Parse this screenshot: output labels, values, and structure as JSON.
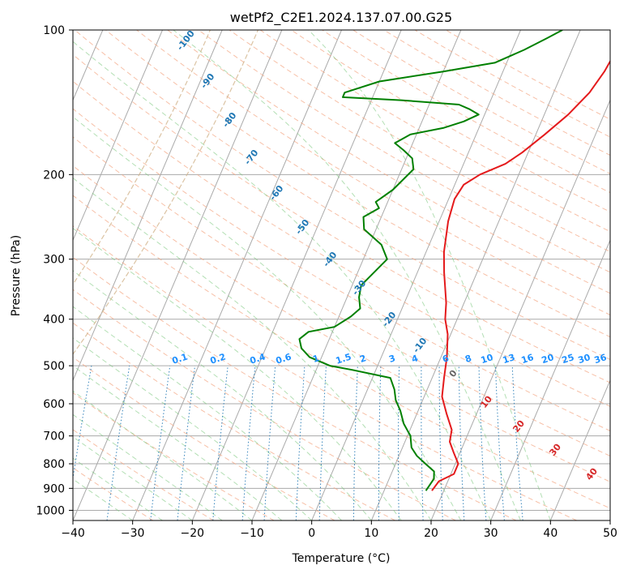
{
  "chart_data": {
    "type": "line",
    "title": "wetPf2_C2E1.2024.137.07.00.G25",
    "xlabel": "Temperature (°C)",
    "ylabel": "Pressure (hPa)",
    "xlim": [
      -40,
      50
    ],
    "ylim": [
      1050,
      100
    ],
    "y_scale": "log",
    "grid": true,
    "x_ticks": [
      -40,
      -30,
      -20,
      -10,
      0,
      10,
      20,
      30,
      40,
      50
    ],
    "y_ticks": [
      100,
      200,
      300,
      400,
      500,
      600,
      700,
      800,
      900,
      1000
    ],
    "series": [
      {
        "name": "",
        "color": "#e41a1c",
        "points": [
          [
            18.0,
            910
          ],
          [
            18.5,
            870
          ],
          [
            20.5,
            840
          ],
          [
            20.5,
            800
          ],
          [
            19.0,
            760
          ],
          [
            17.5,
            720
          ],
          [
            17.0,
            680
          ],
          [
            15.0,
            630
          ],
          [
            13.0,
            580
          ],
          [
            12.0,
            530
          ],
          [
            11.0,
            480
          ],
          [
            9.5,
            430
          ],
          [
            8.0,
            400
          ],
          [
            7.0,
            370
          ],
          [
            4.5,
            320
          ],
          [
            3.0,
            290
          ],
          [
            1.5,
            250
          ],
          [
            1.0,
            225
          ],
          [
            1.5,
            210
          ],
          [
            3.5,
            200
          ],
          [
            7.0,
            190
          ],
          [
            9.0,
            180
          ],
          [
            11.5,
            165
          ],
          [
            14.0,
            150
          ],
          [
            16.0,
            135
          ],
          [
            17.0,
            122
          ],
          [
            17.5,
            110
          ],
          [
            17.0,
            100
          ]
        ]
      },
      {
        "name": "",
        "color": "#008000",
        "points": [
          [
            17.0,
            910
          ],
          [
            17.5,
            860
          ],
          [
            17.0,
            830
          ],
          [
            15.0,
            800
          ],
          [
            13.0,
            770
          ],
          [
            11.5,
            740
          ],
          [
            10.5,
            700
          ],
          [
            8.5,
            660
          ],
          [
            7.0,
            620
          ],
          [
            5.5,
            590
          ],
          [
            4.5,
            560
          ],
          [
            3.0,
            530
          ],
          [
            -4.0,
            510
          ],
          [
            -8.0,
            500
          ],
          [
            -12.0,
            480
          ],
          [
            -14.0,
            460
          ],
          [
            -15.0,
            440
          ],
          [
            -14.0,
            425
          ],
          [
            -10.0,
            415
          ],
          [
            -8.0,
            395
          ],
          [
            -7.0,
            380
          ],
          [
            -8.0,
            360
          ],
          [
            -8.5,
            340
          ],
          [
            -6.0,
            300
          ],
          [
            -8.0,
            280
          ],
          [
            -12.0,
            260
          ],
          [
            -13.0,
            245
          ],
          [
            -11.0,
            235
          ],
          [
            -12.0,
            228
          ],
          [
            -10.0,
            215
          ],
          [
            -8.0,
            195
          ],
          [
            -9.0,
            185
          ],
          [
            -11.0,
            178
          ],
          [
            -13.0,
            172
          ],
          [
            -11.0,
            165
          ],
          [
            -6.0,
            160
          ],
          [
            -3.0,
            155
          ],
          [
            -1.0,
            150
          ],
          [
            -3.0,
            146
          ],
          [
            -5.0,
            143
          ],
          [
            -15.0,
            140
          ],
          [
            -25.0,
            138
          ],
          [
            -25.0,
            135
          ],
          [
            -20.0,
            128
          ],
          [
            -10.0,
            122
          ],
          [
            -2.0,
            117
          ],
          [
            2.0,
            110
          ],
          [
            5.0,
            104
          ],
          [
            7.0,
            100
          ]
        ]
      }
    ],
    "dry_adiabat_labels": [
      "-100",
      "-90",
      "-80",
      "-70",
      "-60",
      "-50",
      "-40",
      "-30",
      "-20",
      "-10",
      "0",
      "10",
      "20",
      "30",
      "40"
    ],
    "mixing_ratio_labels": [
      "0.1",
      "0.2",
      "0.4",
      "0.6",
      "1",
      "1.5",
      "2",
      "3",
      "4",
      "6",
      "8",
      "10",
      "13",
      "16",
      "20",
      "25",
      "30",
      "36"
    ]
  }
}
